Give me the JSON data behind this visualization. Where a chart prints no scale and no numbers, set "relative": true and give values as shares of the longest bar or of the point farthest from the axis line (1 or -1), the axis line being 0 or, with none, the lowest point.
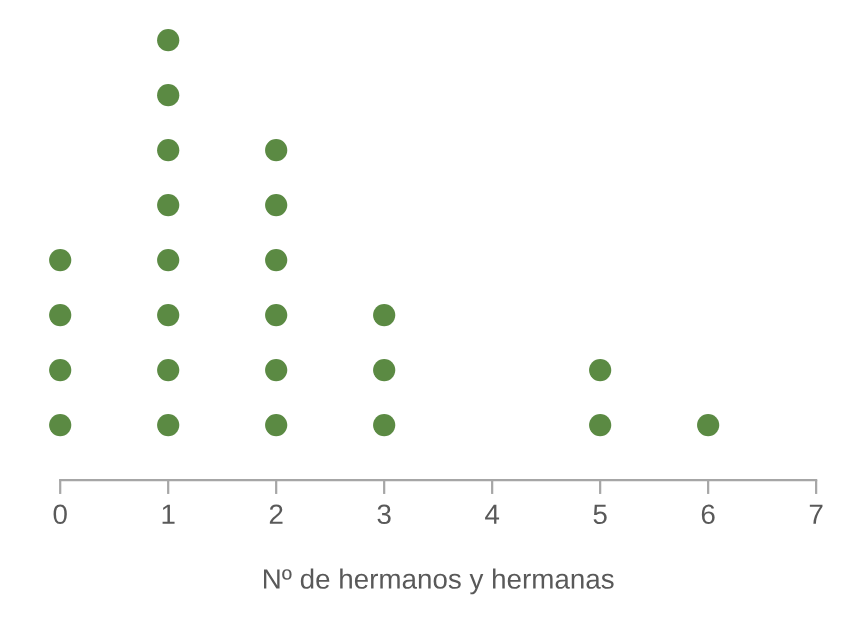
{
  "chart_data": {
    "type": "scatter",
    "xlabel": "Nº de hermanos y hermanas",
    "relative": true,
    "xlim": [
      0,
      7
    ],
    "xticks": [
      0,
      1,
      2,
      3,
      4,
      5,
      6,
      7
    ],
    "marker": "circle",
    "grid": false,
    "tick_labels": "x",
    "series": [
      {
        "color": "#5b8a43",
        "x": [
          0,
          0,
          0,
          0,
          1,
          1,
          1,
          1,
          1,
          1,
          1,
          1,
          2,
          2,
          2,
          2,
          2,
          2,
          3,
          3,
          3,
          5,
          5,
          6
        ],
        "values": [
          0.125,
          0.25,
          0.375,
          0.5,
          0.125,
          0.25,
          0.375,
          0.5,
          0.625,
          0.75,
          0.875,
          1,
          0.125,
          0.25,
          0.375,
          0.5,
          0.625,
          0.75,
          0.125,
          0.25,
          0.375,
          0.125,
          0.25,
          0.125
        ]
      }
    ]
  }
}
